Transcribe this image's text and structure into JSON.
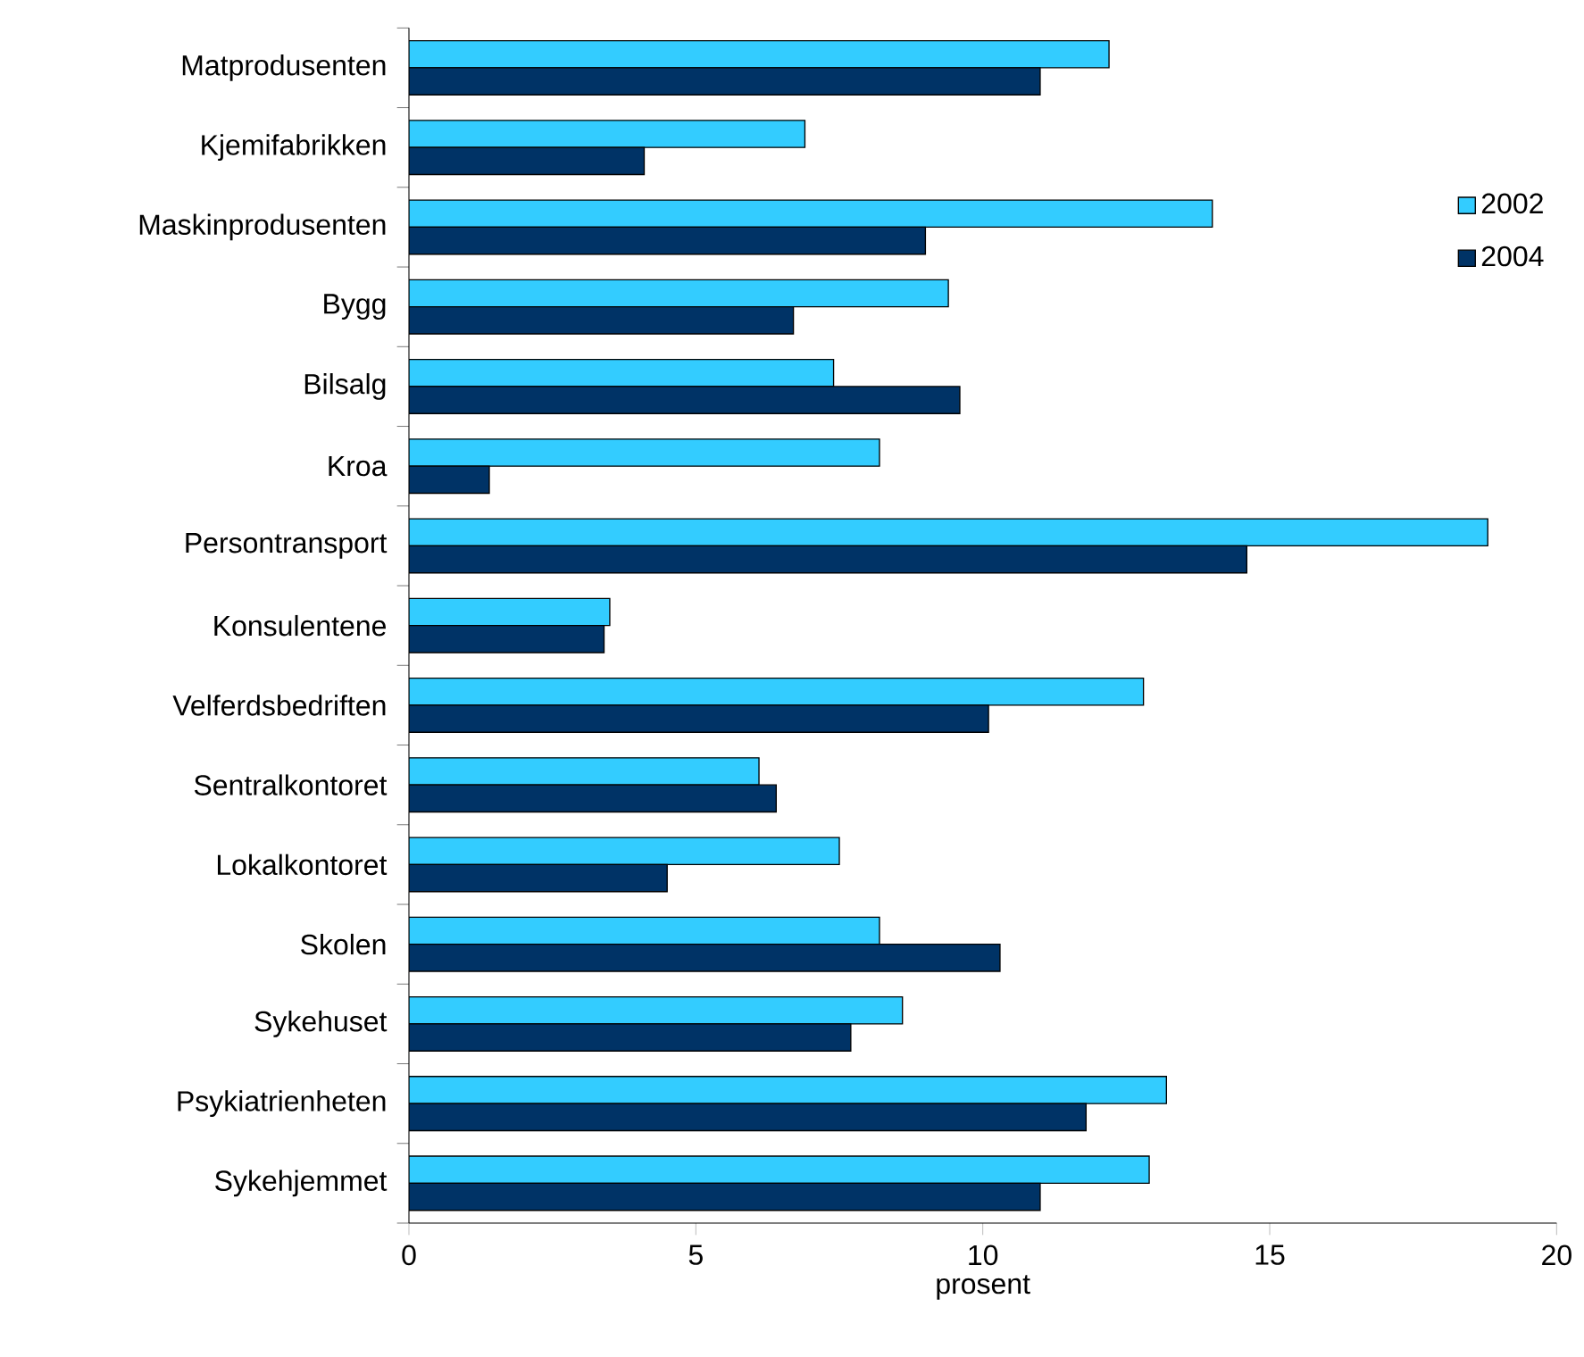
{
  "chart_data": {
    "type": "bar",
    "orientation": "horizontal",
    "categories": [
      "Matprodusenten",
      "Kjemifabrikken",
      "Maskinprodusenten",
      "Bygg",
      "Bilsalg",
      "Kroa",
      "Persontransport",
      "Konsulentene",
      "Velferdsbedriften",
      "Sentralkontoret",
      "Lokalkontoret",
      "Skolen",
      "Sykehuset",
      "Psykiatrienheten",
      "Sykehjemmet"
    ],
    "series": [
      {
        "name": "2002",
        "color": "#33ccff",
        "values": [
          12.2,
          6.9,
          14.0,
          9.4,
          7.4,
          8.2,
          18.8,
          3.5,
          12.8,
          6.1,
          7.5,
          8.2,
          8.6,
          13.2,
          12.9
        ]
      },
      {
        "name": "2004",
        "color": "#003366",
        "values": [
          11.0,
          4.1,
          9.0,
          6.7,
          9.6,
          1.4,
          14.6,
          3.4,
          10.1,
          6.4,
          4.5,
          10.3,
          7.7,
          11.8,
          11.0
        ]
      }
    ],
    "xlim": [
      0,
      20
    ],
    "xticks": [
      0,
      5,
      10,
      15,
      20
    ],
    "xlabel": "prosent",
    "legend": "right"
  }
}
